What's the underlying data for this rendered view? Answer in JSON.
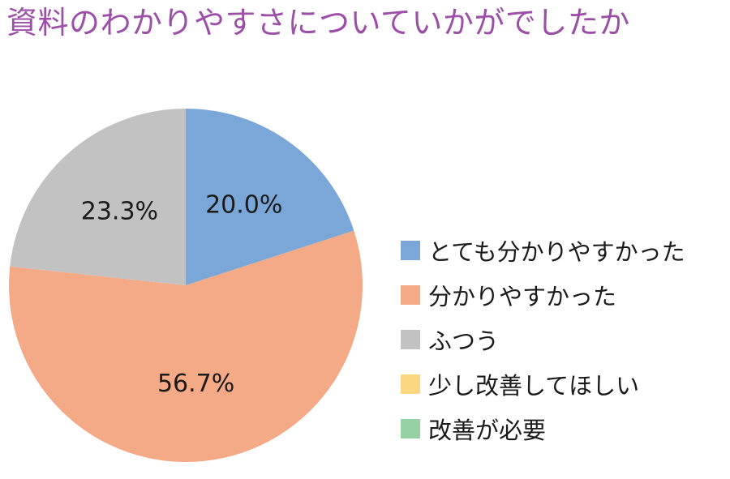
{
  "chart_data": {
    "type": "pie",
    "title": "資料のわかりやすさについていかがでしたか",
    "legend_position": "right",
    "series": [
      {
        "name": "とても分かりやすかった",
        "value": 20.0,
        "label": "20.0%",
        "color": "#7aa7d8"
      },
      {
        "name": "分かりやすかった",
        "value": 56.7,
        "label": "56.7%",
        "color": "#f4a987"
      },
      {
        "name": "ふつう",
        "value": 23.3,
        "label": "23.3%",
        "color": "#c2c2c2"
      },
      {
        "name": "少し改善してほしい",
        "value": 0,
        "label": "",
        "color": "#fbd77f"
      },
      {
        "name": "改善が必要",
        "value": 0,
        "label": "",
        "color": "#96d1a3"
      }
    ]
  }
}
